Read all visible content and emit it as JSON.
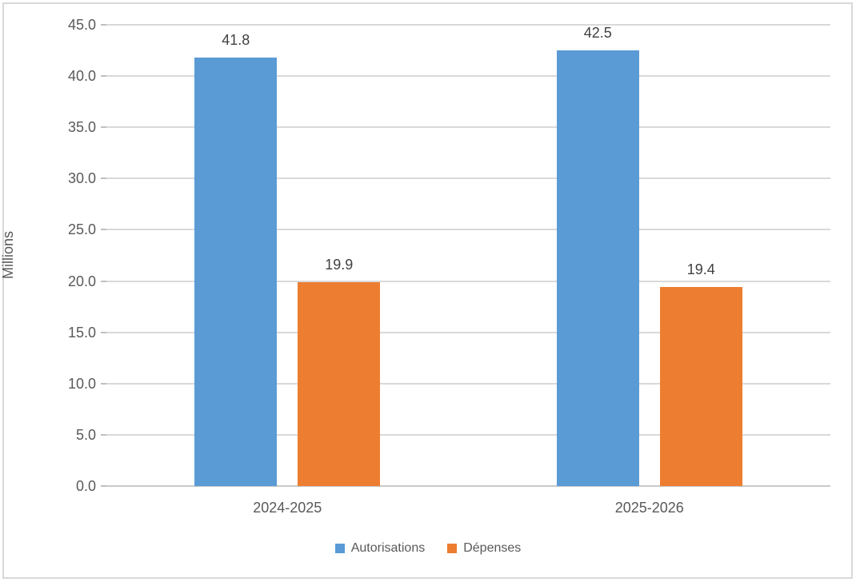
{
  "chart_data": {
    "type": "bar",
    "title": "",
    "categories": [
      "2024-2025",
      "2025-2026"
    ],
    "series": [
      {
        "name": "Autorisations",
        "color": "#5B9BD5",
        "values": [
          41.8,
          42.5
        ],
        "labels": [
          "41.8",
          "42.5"
        ]
      },
      {
        "name": "Dépenses",
        "color": "#ED7D31",
        "values": [
          19.9,
          19.4
        ],
        "labels": [
          "19.9",
          "19.4"
        ]
      }
    ],
    "xlabel": "",
    "ylabel": "Millions",
    "ylim": [
      0,
      45
    ],
    "ytick_interval": 5,
    "ytick_labels": [
      "0.0",
      "5.0",
      "10.0",
      "15.0",
      "20.0",
      "25.0",
      "30.0",
      "35.0",
      "40.0",
      "45.0"
    ],
    "grid": true,
    "legend_position": "bottom"
  },
  "style": {
    "background": "#FFFFFF",
    "gridline_color": "#D9D9D9",
    "axis_line_color": "#C9C9C9",
    "tick_stub_color": "#BFBFBF",
    "tick_text_color": "#595959",
    "data_label_color": "#404040",
    "frame_border_color": "#D9D9D9"
  }
}
